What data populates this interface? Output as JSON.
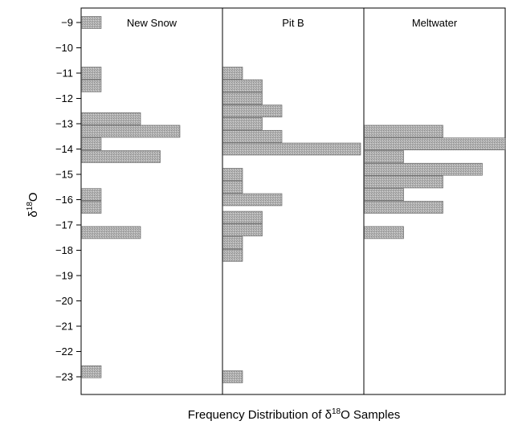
{
  "chart_data": {
    "type": "bar",
    "orientation": "horizontal",
    "ylim": [
      -23.5,
      -8.5
    ],
    "y_ticks": [
      -9,
      -10,
      -11,
      -12,
      -13,
      -14,
      -15,
      -16,
      -17,
      -18,
      -19,
      -20,
      -21,
      -22,
      -23
    ],
    "ylabel": {
      "prefix": "δ",
      "sup": "18",
      "suffix": "O"
    },
    "xlabel": {
      "prefix": "Frequency Distribution of δ",
      "sup": "18",
      "suffix": "O Samples"
    },
    "bar_color": "#b4b4b4",
    "panels": [
      {
        "name": "New Snow",
        "bins": [
          -9,
          -11,
          -11.5,
          -12.8,
          -13.3,
          -13.8,
          -14.3,
          -15.8,
          -16.3,
          -17.3,
          -22.8
        ],
        "counts": [
          1,
          1,
          1,
          3,
          5,
          1,
          4,
          1,
          1,
          3,
          1
        ]
      },
      {
        "name": "Pit B",
        "bins": [
          -11,
          -11.5,
          -12,
          -12.5,
          -13,
          -13.5,
          -14,
          -15,
          -15.5,
          -16,
          -16.7,
          -17.2,
          -17.7,
          -18.2,
          -23
        ],
        "counts": [
          1,
          2,
          2,
          3,
          2,
          3,
          7,
          1,
          1,
          3,
          2,
          2,
          1,
          1,
          1
        ]
      },
      {
        "name": "Meltwater",
        "bins": [
          -13.3,
          -13.8,
          -14.3,
          -14.8,
          -15.3,
          -15.8,
          -16.3,
          -17.3
        ],
        "counts": [
          4,
          10,
          2,
          6,
          4,
          2,
          4,
          2
        ]
      }
    ]
  }
}
